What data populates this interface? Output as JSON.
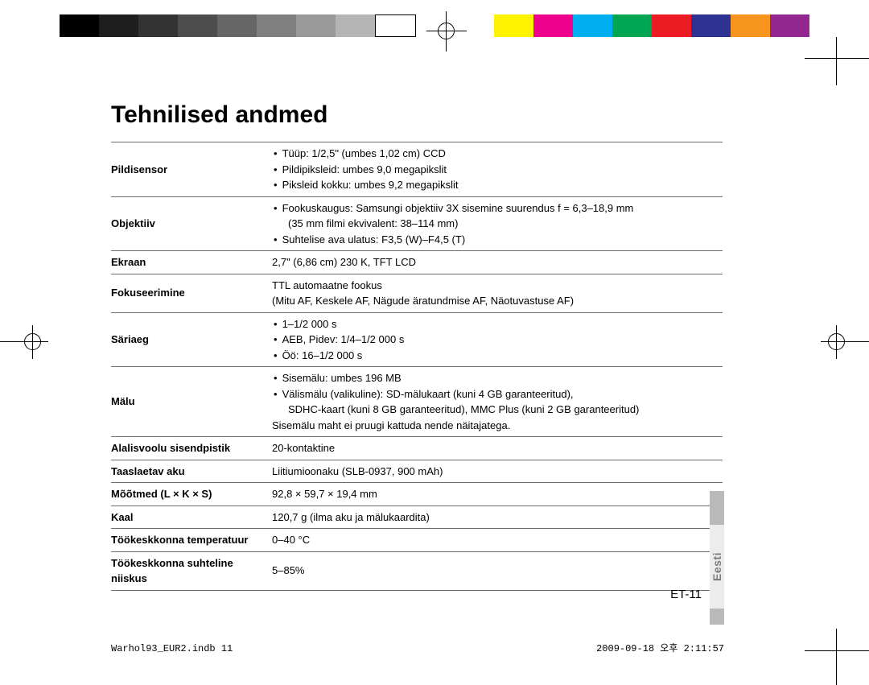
{
  "colorBar": {
    "left": [
      "#000000",
      "#1e1e1e",
      "#333333",
      "#4d4d4d",
      "#666666",
      "#808080",
      "#9a9a9a",
      "#b5b5b5"
    ],
    "right": [
      "#fff200",
      "#ec008c",
      "#00aeef",
      "#00a651",
      "#ed1c24",
      "#2e3192",
      "#f7941d",
      "#92278f"
    ]
  },
  "title": "Tehnilised andmed",
  "rows": [
    {
      "label": "Pildisensor",
      "items": [
        "Tüüp: 1/2,5\" (umbes 1,02 cm) CCD",
        "Pildipiksleid: umbes 9,0 megapikslit",
        "Piksleid kokku: umbes 9,2 megapikslit"
      ]
    },
    {
      "label": "Objektiiv",
      "items": [
        "Fookuskaugus: Samsungi objektiiv 3X sisemine suurendus f = 6,3–18,9 mm",
        "(35 mm filmi ekvivalent: 38–114 mm)",
        "Suhtelise ava ulatus: F3,5 (W)–F4,5 (T)"
      ],
      "contIdx": [
        1
      ]
    },
    {
      "label": "Ekraan",
      "text": "2,7\" (6,86 cm) 230 K, TFT LCD"
    },
    {
      "label": "Fokuseerimine",
      "lines": [
        "TTL automaatne fookus",
        "(Mitu AF, Keskele AF, Nägude äratundmise AF, Näotuvastuse AF)"
      ]
    },
    {
      "label": "Säriaeg",
      "items": [
        "1–1/2 000 s",
        "AEB, Pidev: 1/4–1/2 000 s",
        "Öö: 16–1/2 000 s"
      ]
    },
    {
      "label": "Mälu",
      "items": [
        "Sisemälu: umbes 196 MB",
        "Välismälu (valikuline): SD-mälukaart (kuni 4 GB garanteeritud),",
        "SDHC-kaart (kuni 8 GB garanteeritud), MMC Plus (kuni 2 GB garanteeritud)"
      ],
      "contIdx": [
        2
      ],
      "note": "Sisemälu maht ei pruugi kattuda nende näitajatega."
    },
    {
      "label": "Alalisvoolu sisendpistik",
      "text": "20-kontaktine"
    },
    {
      "label": "Taaslaetav aku",
      "text": "Liitiumioonaku (SLB-0937, 900 mAh)"
    },
    {
      "label": "Mõõtmed (L × K × S)",
      "text": "92,8 × 59,7 × 19,4 mm"
    },
    {
      "label": "Kaal",
      "text": "120,7 g (ilma aku ja mälukaardita)"
    },
    {
      "label": "Töökeskkonna temperatuur",
      "text": "0–40 °C"
    },
    {
      "label": "Töökeskkonna suhteline niiskus",
      "text": "5–85%"
    }
  ],
  "sideLabel": "Eesti",
  "pageNumber": "ET-11",
  "footerLeft": "Warhol93_EUR2.indb   11",
  "footerRight": "2009-09-18   오후 2:11:57"
}
